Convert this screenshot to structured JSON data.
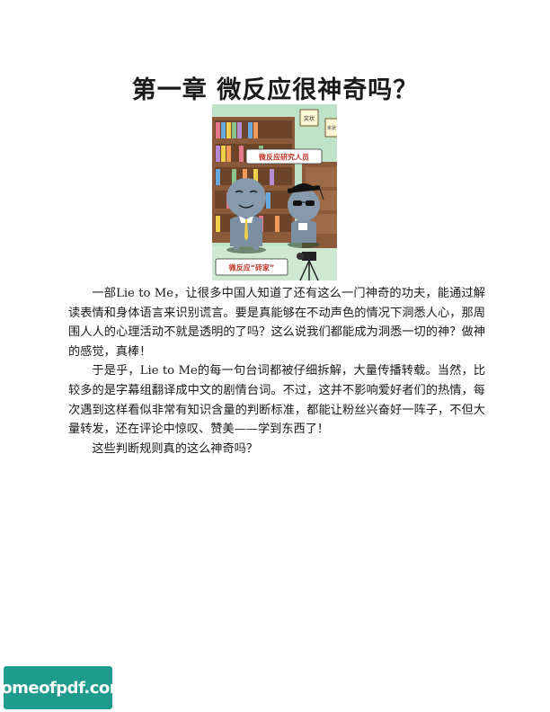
{
  "title": "第一章 微反应很神奇吗？",
  "illustration": {
    "sign_top": "奖状",
    "sign_right": "奖状",
    "bubble_researcher": "微反应研究人员",
    "bubble_expert": "微反应“砖家”"
  },
  "paragraphs": [
    "一部Lie to Me，让很多中国人知道了还有这么一门神奇的功夫，能通过解读表情和身体语言来识别谎言。要是真能够在不动声色的情况下洞悉人心，那周围人人的心理活动不就是透明的了吗？这么说我们都能成为洞悉一切的神？做神的感觉，真棒！",
    "于是乎，Lie to Me的每一句台词都被仔细拆解，大量传播转载。当然，比较多的是字幕组翻译成中文的剧情台词。不过，这并不影响爱好者们的热情，每次遇到这样看似非常有知识含量的判断标准，都能让粉丝兴奋好一阵子，不但大量转发，还在评论中惊叹、赞美——学到东西了！",
    "这些判断规则真的这么神奇吗？"
  ],
  "watermark": "homeofpdf.com"
}
